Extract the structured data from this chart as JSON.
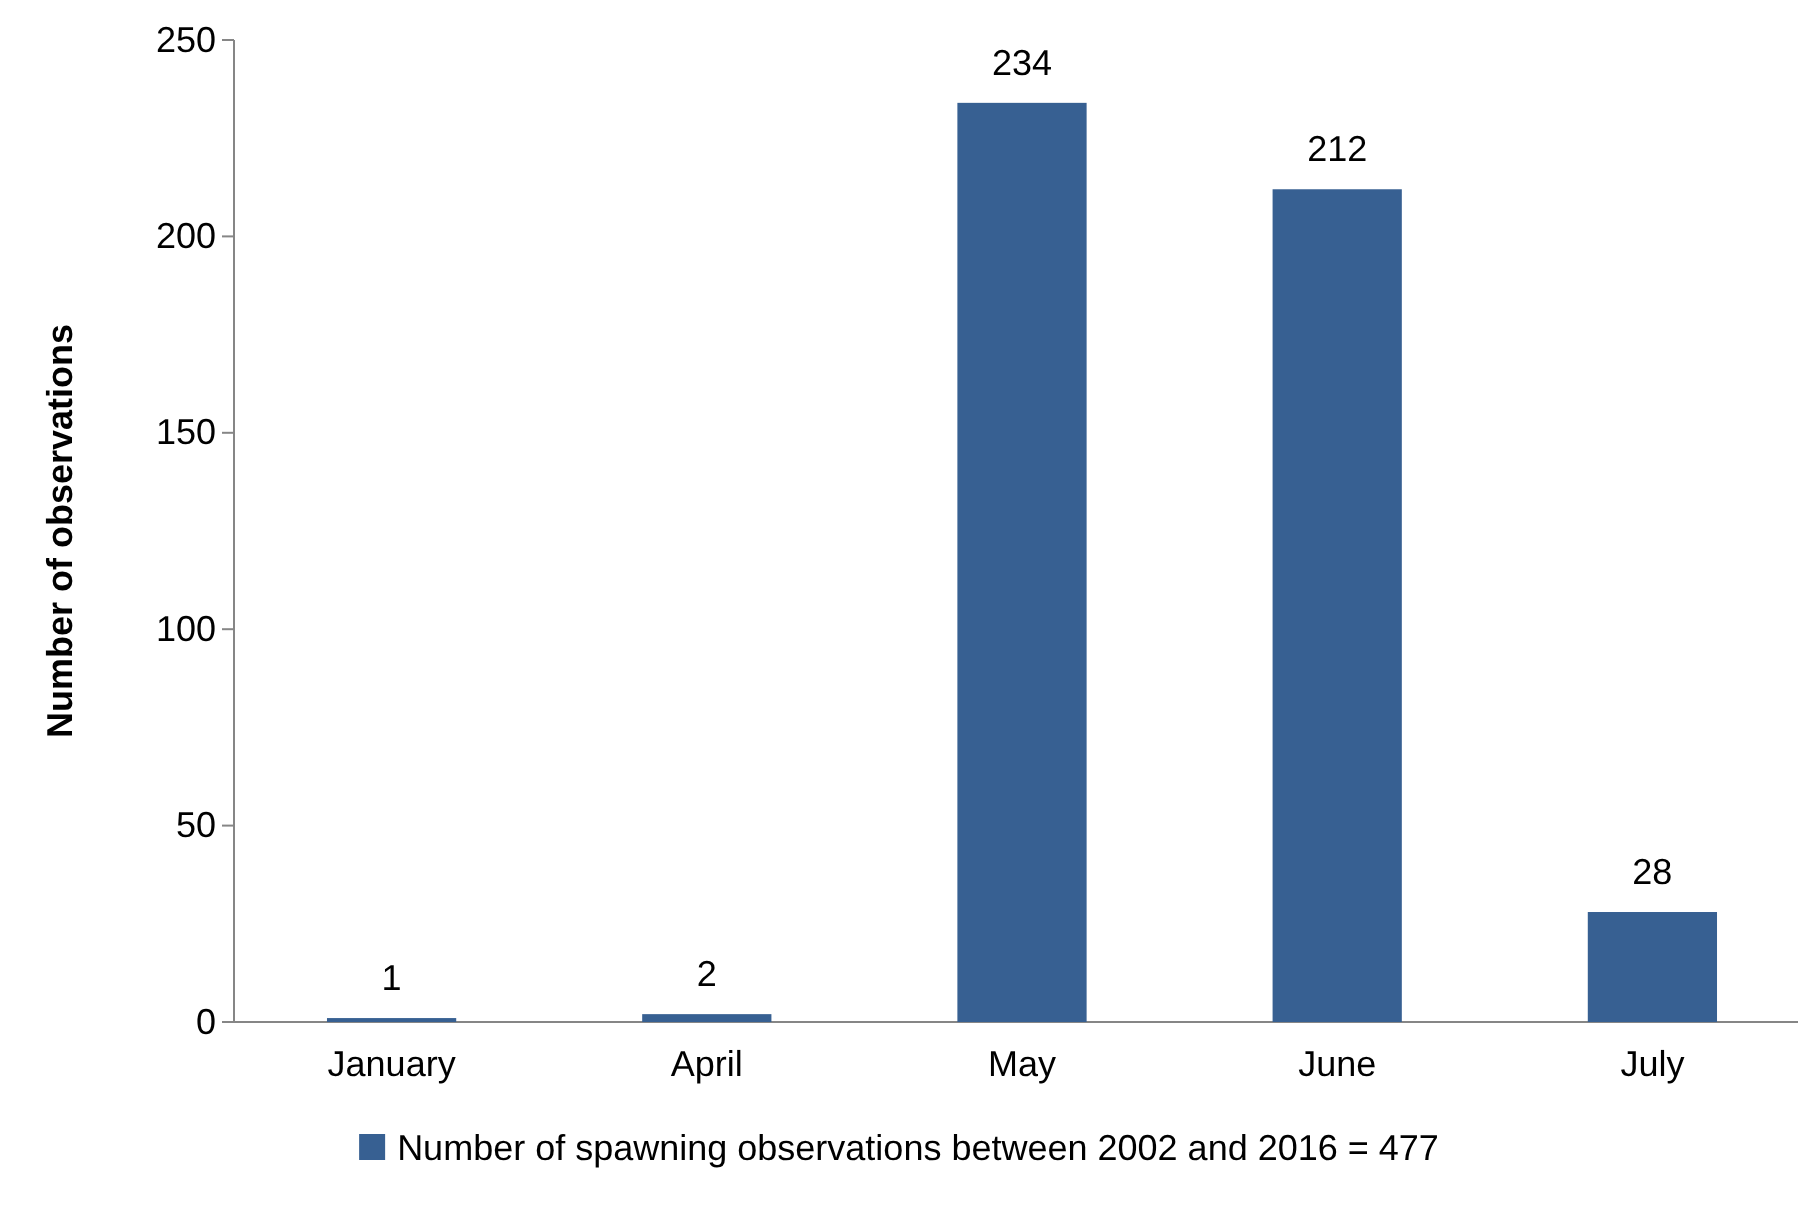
{
  "chart_data": {
    "type": "bar",
    "ylabel": "Number of observations",
    "categories": [
      "January",
      "April",
      "May",
      "June",
      "July"
    ],
    "series": [
      {
        "name": "Number of spawning observations between 2002 and 2016 = 477",
        "color": "#376092",
        "values": [
          1,
          2,
          234,
          212,
          28
        ]
      }
    ],
    "ylim": [
      0,
      250
    ],
    "yticks": [
      0,
      50,
      100,
      150,
      200,
      250
    ],
    "data_labels": true,
    "legend": "bottom",
    "grid": false
  }
}
